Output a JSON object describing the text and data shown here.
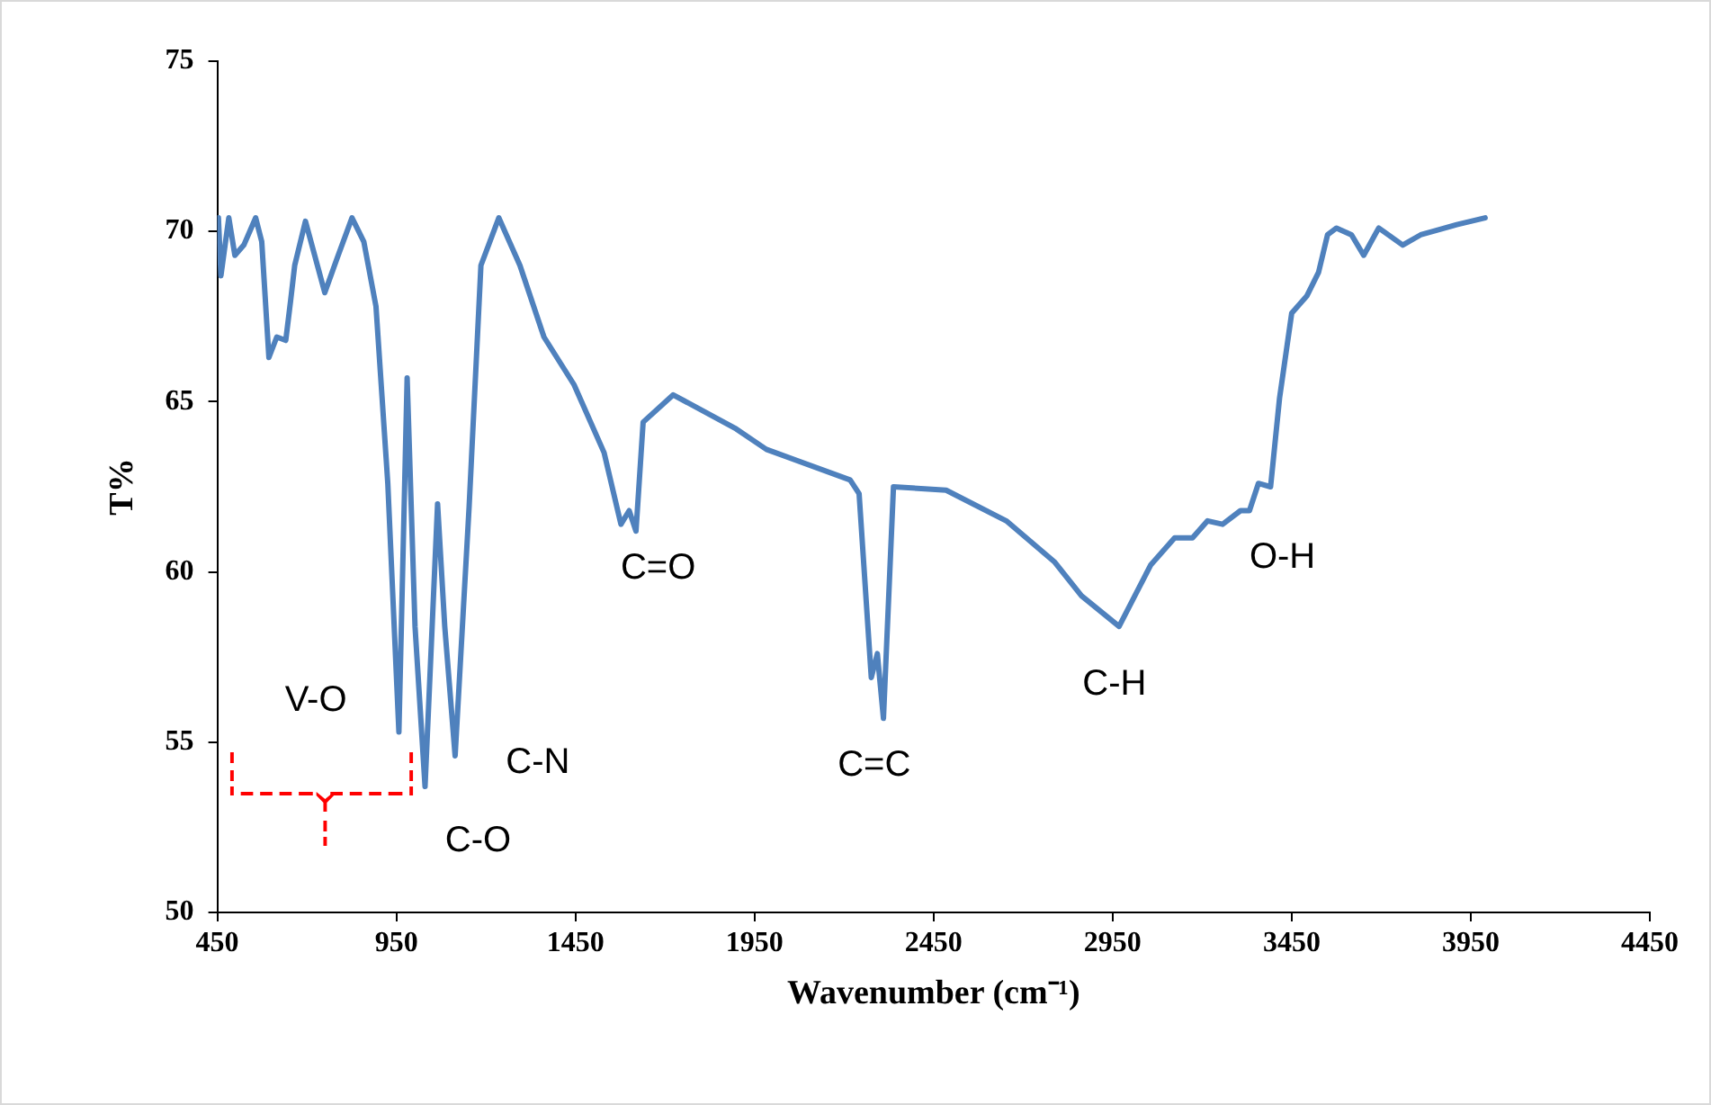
{
  "chart_data": {
    "type": "line",
    "xlabel": "Wavenumber (cm⁻¹)",
    "ylabel": "T%",
    "xlim": [
      450,
      4450
    ],
    "xticks": [
      450,
      950,
      1450,
      1950,
      2450,
      2950,
      3450,
      3950,
      4450
    ],
    "ylim": [
      50,
      75
    ],
    "yticks": [
      50,
      55,
      60,
      65,
      70,
      75
    ],
    "grid": false,
    "legend": false,
    "marker": "none",
    "line_style": "solid",
    "series": [
      {
        "color": "#4f81bd",
        "x": [
          453,
          460,
          482,
          499,
          524,
          557,
          574,
          594,
          616,
          641,
          655,
          666,
          696,
          750,
          784,
          826,
          859,
          893,
          926,
          957,
          980,
          1002,
          1030,
          1065,
          1085,
          1114,
          1153,
          1186,
          1236,
          1295,
          1362,
          1446,
          1530,
          1577,
          1600,
          1619,
          1639,
          1723,
          1899,
          1983,
          2217,
          2242,
          2276,
          2293,
          2310,
          2338,
          2485,
          2653,
          2787,
          2863,
          2968,
          3056,
          3123,
          3173,
          3215,
          3257,
          3307,
          3332,
          3357,
          3391,
          3416,
          3450,
          3492,
          3525,
          3550,
          3575,
          3617,
          3651,
          3693,
          3760,
          3810,
          3911,
          3990
        ],
        "values": [
          70.4,
          68.7,
          70.4,
          69.3,
          69.6,
          70.4,
          69.7,
          66.3,
          66.9,
          66.8,
          68.0,
          69.0,
          70.3,
          68.2,
          69.2,
          70.4,
          69.7,
          67.8,
          62.6,
          55.3,
          65.7,
          58.4,
          53.7,
          62.0,
          58.4,
          54.6,
          61.9,
          69.0,
          70.4,
          69.0,
          66.9,
          65.5,
          63.5,
          61.4,
          61.8,
          61.2,
          64.4,
          65.2,
          64.2,
          63.6,
          62.7,
          62.3,
          56.9,
          57.6,
          55.7,
          62.5,
          62.4,
          61.5,
          60.3,
          59.3,
          58.4,
          60.2,
          61.0,
          61.0,
          61.5,
          61.4,
          61.8,
          61.8,
          62.6,
          62.5,
          65.1,
          67.6,
          68.1,
          68.8,
          69.9,
          70.1,
          69.9,
          69.3,
          70.1,
          69.6,
          69.9,
          70.2,
          70.4
        ]
      }
    ],
    "annotations": [
      "V-O",
      "C-O",
      "C-N",
      "C=O",
      "C=C",
      "C-H",
      "O-H"
    ]
  }
}
